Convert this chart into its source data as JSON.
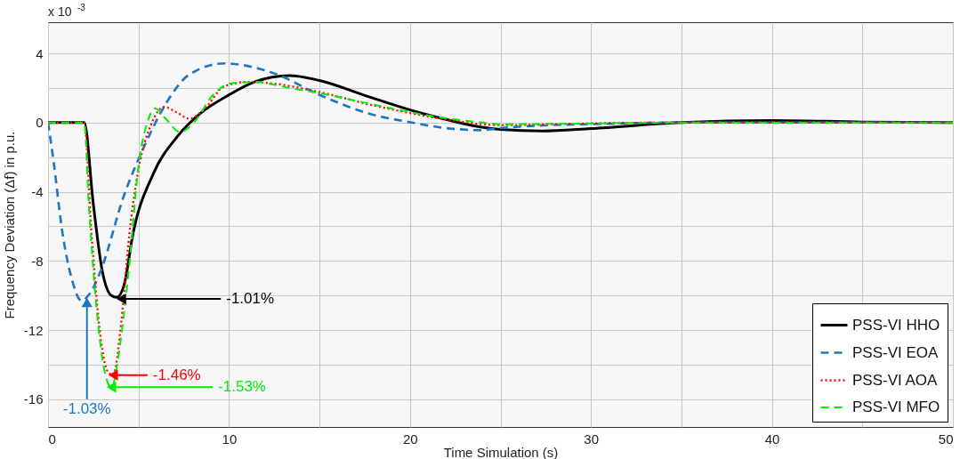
{
  "chart_data": {
    "type": "line",
    "xlabel": "Time Simulation (s)",
    "ylabel": "Frequency Deviation (Δf) in p.u.",
    "xlim": [
      0,
      50
    ],
    "ylim": [
      -17.6,
      5.8
    ],
    "xticks": [
      0,
      {
        "value": 5,
        "label": null
      },
      10,
      {
        "value": 15,
        "label": null
      },
      20,
      {
        "value": 25,
        "label": null
      },
      30,
      {
        "value": 35,
        "label": null
      },
      40,
      {
        "value": 45,
        "label": null
      },
      50
    ],
    "yticks": [
      4,
      {
        "value": 2,
        "label": null
      },
      0,
      {
        "value": -2,
        "label": null
      },
      -4,
      {
        "value": -6,
        "label": null
      },
      -8,
      {
        "value": -10,
        "label": null
      },
      -12,
      {
        "value": -14,
        "label": null
      },
      -16
    ],
    "grid": true,
    "legend": "bottom right",
    "series": [
      {
        "name": "PSS-VI HHO",
        "color": "#000000",
        "line_style": "solid",
        "x": [
          0,
          2.0,
          2.5,
          3.0,
          3.5,
          3.8,
          4.2,
          4.7,
          5.8,
          7.15,
          8.45,
          10,
          11.4,
          13.35,
          15.0,
          17.7,
          20.1,
          22,
          23.9,
          25,
          27.3,
          30,
          35,
          40,
          45,
          50
        ],
        "values": [
          0,
          0,
          -4.7,
          -8.6,
          -10.0,
          -10.1,
          -9.4,
          -6.4,
          -3.0,
          -0.8,
          0.56,
          1.6,
          2.35,
          2.72,
          2.43,
          1.5,
          0.7,
          0.18,
          -0.26,
          -0.4,
          -0.49,
          -0.35,
          0,
          0.12,
          0.03,
          0
        ]
      },
      {
        "name": "PSS-VI EOA",
        "color": "#1f77c4",
        "line_style": "dashed",
        "x": [
          0,
          0.3,
          0.8,
          1.3,
          1.85,
          2.3,
          2.9,
          4.2,
          5.35,
          6.5,
          7.8,
          9.75,
          11.7,
          12.6,
          15,
          17.7,
          20.1,
          22,
          23.9,
          25,
          27,
          30,
          35,
          40,
          50
        ],
        "values": [
          0,
          -2.2,
          -6.4,
          -9.0,
          -10.3,
          -9.9,
          -8.6,
          -4.2,
          -1.3,
          1.07,
          2.77,
          3.42,
          3.1,
          2.8,
          1.6,
          0.53,
          0,
          -0.32,
          -0.44,
          -0.32,
          -0.18,
          -0.09,
          0,
          0,
          0
        ]
      },
      {
        "name": "PSS-VI AOA",
        "color": "#ff0000",
        "line_style": "dotted",
        "x": [
          0,
          2.0,
          2.4,
          2.9,
          3.3,
          3.6,
          4.05,
          4.5,
          5.0,
          5.7,
          6.4,
          7.15,
          7.8,
          8.6,
          9.75,
          11.05,
          12.4,
          15.0,
          17.7,
          20.1,
          22,
          25,
          30,
          35,
          50
        ],
        "values": [
          0,
          0,
          -6.4,
          -12.4,
          -14.4,
          -14.6,
          -11.5,
          -6.4,
          -2.7,
          -0.1,
          0.9,
          0.56,
          0.22,
          0.73,
          2.1,
          2.35,
          2.26,
          1.76,
          1.06,
          0.53,
          0.18,
          -0.15,
          -0.05,
          0,
          0
        ]
      },
      {
        "name": "PSS-VI MFO",
        "color": "#00ee00",
        "line_style": "dashed",
        "x": [
          0,
          2.0,
          2.25,
          2.75,
          3.25,
          3.5,
          4.05,
          4.5,
          5.0,
          5.5,
          5.9,
          6.5,
          7.3,
          8.1,
          9.1,
          10.1,
          11.4,
          13.35,
          15,
          17.7,
          20,
          22,
          24,
          25,
          30,
          35,
          50
        ],
        "values": [
          0,
          0,
          -4.7,
          -11.5,
          -14.9,
          -15.3,
          -12.3,
          -8.1,
          -2.5,
          0.05,
          0.82,
          0.22,
          -0.55,
          0.05,
          1.58,
          2.26,
          2.35,
          2.0,
          1.7,
          1.1,
          0.6,
          0.25,
          0,
          -0.1,
          -0.05,
          0,
          0
        ]
      }
    ],
    "annotations": [
      "x 10$^{-3}$",
      {
        "text": "-1.01%",
        "x": 4.05,
        "y": -10.2
      },
      {
        "text": "-1.03%",
        "x": 2.15,
        "y": -10.4
      },
      {
        "text": "-1.46%",
        "x": 3.6,
        "y": -14.6
      },
      {
        "text": "-1.53%",
        "x": 3.5,
        "y": -15.3
      }
    ]
  }
}
